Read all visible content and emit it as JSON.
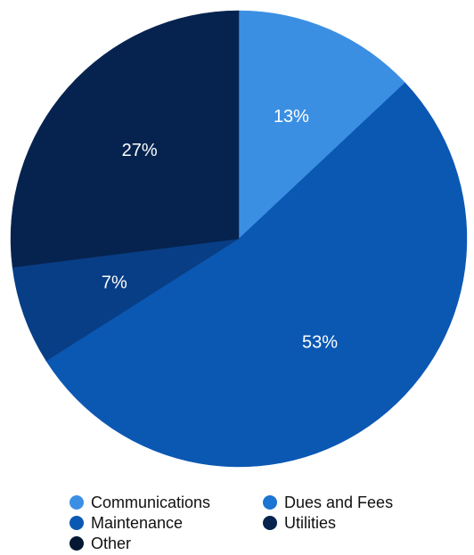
{
  "chart_data": {
    "type": "pie",
    "title": "",
    "start_angle_deg": 0,
    "direction": "clockwise",
    "slices": [
      {
        "key": "communications",
        "label": "13%",
        "value": 13,
        "color": "#3b8fe3"
      },
      {
        "key": "maintenance",
        "label": "53%",
        "value": 53,
        "color": "#0b58b3"
      },
      {
        "key": "other",
        "label": "7%",
        "value": 7,
        "color": "#083e86"
      },
      {
        "key": "utilities",
        "label": "27%",
        "value": 27,
        "color": "#06234f"
      }
    ],
    "legend": {
      "placement": "bottom",
      "items": [
        {
          "key": "communications",
          "name": "Communications",
          "color": "#3b8fe3"
        },
        {
          "key": "dues",
          "name": "Dues and Fees",
          "color": "#1c74d3"
        },
        {
          "key": "maintenance",
          "name": "Maintenance",
          "color": "#0b58b3"
        },
        {
          "key": "utilities",
          "name": "Utilities",
          "color": "#06234f"
        },
        {
          "key": "other",
          "name": "Other",
          "color": "#041833"
        }
      ]
    }
  }
}
